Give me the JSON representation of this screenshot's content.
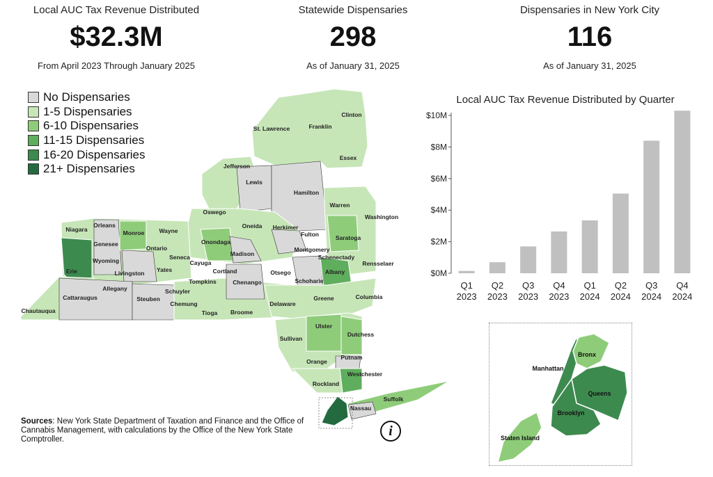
{
  "kpis": [
    {
      "label": "Local AUC Tax Revenue Distributed",
      "value": "$32.3M",
      "note": "From April 2023 Through January 2025"
    },
    {
      "label": "Statewide Dispensaries",
      "value": "298",
      "note": "As of January 31, 2025"
    },
    {
      "label": "Dispensaries in New York City",
      "value": "116",
      "note": "As of January 31, 2025"
    }
  ],
  "legend": [
    {
      "label": "No Dispensaries",
      "color": "#d9d9d9"
    },
    {
      "label": "1-5 Dispensaries",
      "color": "#c7e6b8"
    },
    {
      "label": "6-10 Dispensaries",
      "color": "#8fcc7a"
    },
    {
      "label": "11-15 Dispensaries",
      "color": "#5fae5d"
    },
    {
      "label": "16-20 Dispensaries",
      "color": "#3d8a4f"
    },
    {
      "label": "21+ Dispensaries",
      "color": "#236b3e"
    }
  ],
  "map": {
    "counties": [
      "St. Lawrence",
      "Franklin",
      "Clinton",
      "Essex",
      "Jefferson",
      "Lewis",
      "Hamilton",
      "Warren",
      "Washington",
      "Oswego",
      "Oneida",
      "Herkimer",
      "Fulton",
      "Saratoga",
      "Niagara",
      "Orleans",
      "Monroe",
      "Wayne",
      "Genesee",
      "Ontario",
      "Onondaga",
      "Madison",
      "Montgomery",
      "Schenectady",
      "Rensselaer",
      "Erie",
      "Wyoming",
      "Livingston",
      "Yates",
      "Seneca",
      "Cayuga",
      "Cortland",
      "Otsego",
      "Schoharie",
      "Albany",
      "Allegany",
      "Steuben",
      "Schuyler",
      "Tompkins",
      "Chenango",
      "Cattaraugus",
      "Chemung",
      "Tioga",
      "Broome",
      "Delaware",
      "Greene",
      "Columbia",
      "Chautauqua",
      "Ulster",
      "Dutchess",
      "Sullivan",
      "Putnam",
      "Orange",
      "Westchester",
      "Rockland",
      "Suffolk",
      "Nassau"
    ],
    "nyc": [
      "Bronx",
      "Manhattan",
      "Queens",
      "Brooklyn",
      "Staten Island"
    ]
  },
  "sources": {
    "label": "Sources",
    "text": ": New York State Department of Taxation and Finance and the Office of Cannabis Management, with calculations by the Office of the New York State Comptroller."
  },
  "chart_data": {
    "type": "bar",
    "title": "Local AUC Tax Revenue Distributed by Quarter",
    "categories": [
      "Q1 2023",
      "Q2 2023",
      "Q3 2023",
      "Q4 2023",
      "Q1 2024",
      "Q2 2024",
      "Q3 2024",
      "Q4 2024"
    ],
    "values": [
      0.15,
      0.7,
      1.7,
      2.65,
      3.35,
      5.05,
      8.4,
      10.3
    ],
    "ylim": [
      0,
      10
    ],
    "yticks": [
      0,
      2,
      4,
      6,
      8,
      10
    ],
    "ytick_labels": [
      "$0M",
      "$2M",
      "$4M",
      "$6M",
      "$8M",
      "$10M"
    ],
    "bar_color": "#c0c0c0",
    "grid": false
  }
}
